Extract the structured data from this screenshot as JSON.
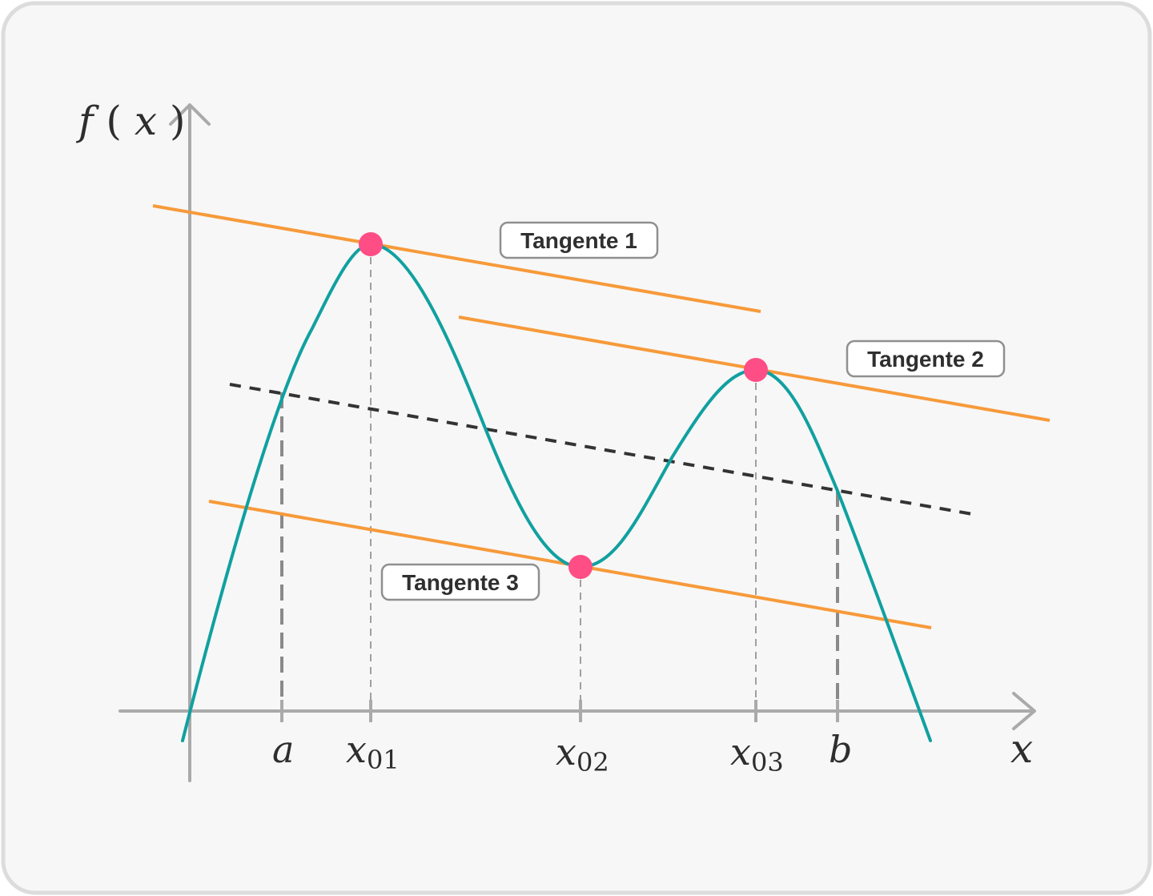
{
  "diagram": {
    "y_axis_label": {
      "var": "f",
      "open": "(",
      "arg": "x",
      "close": ")"
    },
    "x_axis_label": "x",
    "ticks": [
      {
        "key": "a",
        "main": "a",
        "sub": ""
      },
      {
        "key": "x01",
        "main": "x",
        "sub": "01"
      },
      {
        "key": "x02",
        "main": "x",
        "sub": "02"
      },
      {
        "key": "x03",
        "main": "x",
        "sub": "03"
      },
      {
        "key": "b",
        "main": "b",
        "sub": ""
      }
    ],
    "tangents": [
      {
        "key": "t1",
        "label": "Tangente 1"
      },
      {
        "key": "t2",
        "label": "Tangente 2"
      },
      {
        "key": "t3",
        "label": "Tangente 3"
      }
    ],
    "colors": {
      "background": "#f7f7f7",
      "frame_border": "#dcdcdc",
      "axis": "#aaaaaa",
      "curve": "#11a0a0",
      "tangent": "#f79a3a",
      "secant": "#333333",
      "guide": "#8a8a8a",
      "point": "#ff4d85",
      "callout_border": "#8f8f8f",
      "callout_fill": "#ffffff"
    }
  }
}
